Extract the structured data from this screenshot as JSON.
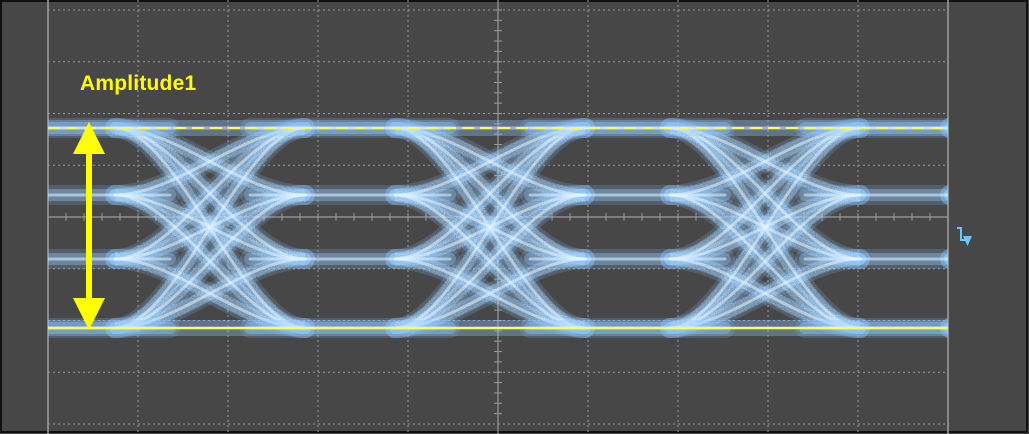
{
  "display": {
    "background_color": "#474747",
    "border_color": "#111111",
    "grid_color": "#9a9a9a",
    "waveform_color": "#8fc7ff",
    "waveform_core_color": "#e8f6ff",
    "eye_opening_color": "#464646",
    "trace_type": "PAM4 eye diagram"
  },
  "measurement": {
    "label": "Amplitude1",
    "label_color": "#ffff00",
    "cursor_color": "#ffff4a",
    "arrow_color": "#ffff00",
    "icon": "double-headed-vertical-arrow-icon"
  },
  "trigger": {
    "icon": "trigger-level-arrow-icon",
    "color": "#69c9ff"
  }
}
